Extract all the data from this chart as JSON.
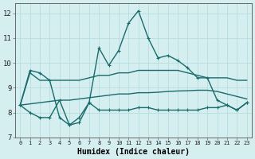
{
  "xlabel": "Humidex (Indice chaleur)",
  "xlim": [
    -0.5,
    23.5
  ],
  "ylim": [
    7,
    12.4
  ],
  "yticks": [
    7,
    8,
    9,
    10,
    11,
    12
  ],
  "xticks": [
    0,
    1,
    2,
    3,
    4,
    5,
    6,
    7,
    8,
    9,
    10,
    11,
    12,
    13,
    14,
    15,
    16,
    17,
    18,
    19,
    20,
    21,
    22,
    23
  ],
  "background_color": "#d5eef0",
  "grid_color": "#b8dde0",
  "line_color": "#1a6b6b",
  "lines": [
    {
      "x": [
        0,
        1,
        2,
        3,
        4,
        5,
        6,
        7,
        8,
        9,
        10,
        11,
        12,
        13,
        14,
        15,
        16,
        17,
        18,
        19,
        20,
        21,
        22,
        23
      ],
      "y": [
        8.3,
        9.7,
        9.6,
        9.3,
        7.8,
        7.5,
        7.6,
        8.4,
        10.6,
        9.9,
        10.5,
        11.6,
        12.1,
        11.0,
        10.2,
        10.3,
        10.1,
        9.8,
        9.4,
        9.4,
        8.5,
        8.3,
        8.1,
        8.4
      ],
      "has_marker": true
    },
    {
      "x": [
        0,
        1,
        2,
        3,
        4,
        5,
        6,
        7,
        8,
        9,
        10,
        11,
        12,
        13,
        14,
        15,
        16,
        17,
        18,
        19,
        20,
        21,
        22,
        23
      ],
      "y": [
        8.3,
        9.6,
        9.3,
        9.3,
        9.3,
        9.3,
        9.3,
        9.4,
        9.5,
        9.5,
        9.6,
        9.6,
        9.7,
        9.7,
        9.7,
        9.7,
        9.7,
        9.6,
        9.5,
        9.4,
        9.4,
        9.4,
        9.3,
        9.3
      ],
      "has_marker": false
    },
    {
      "x": [
        0,
        1,
        2,
        3,
        4,
        5,
        6,
        7,
        8,
        9,
        10,
        11,
        12,
        13,
        14,
        15,
        16,
        17,
        18,
        19,
        20,
        21,
        22,
        23
      ],
      "y": [
        8.3,
        8.35,
        8.4,
        8.45,
        8.5,
        8.5,
        8.55,
        8.6,
        8.65,
        8.7,
        8.75,
        8.75,
        8.8,
        8.8,
        8.82,
        8.85,
        8.87,
        8.88,
        8.9,
        8.9,
        8.85,
        8.75,
        8.65,
        8.55
      ],
      "has_marker": false
    },
    {
      "x": [
        0,
        1,
        2,
        3,
        4,
        5,
        6,
        7,
        8,
        9,
        10,
        11,
        12,
        13,
        14,
        15,
        16,
        17,
        18,
        19,
        20,
        21,
        22,
        23
      ],
      "y": [
        8.3,
        8.0,
        7.8,
        7.8,
        8.5,
        7.5,
        7.8,
        8.4,
        8.1,
        8.1,
        8.1,
        8.1,
        8.2,
        8.2,
        8.1,
        8.1,
        8.1,
        8.1,
        8.1,
        8.2,
        8.2,
        8.3,
        8.1,
        8.4
      ],
      "has_marker": true
    }
  ]
}
